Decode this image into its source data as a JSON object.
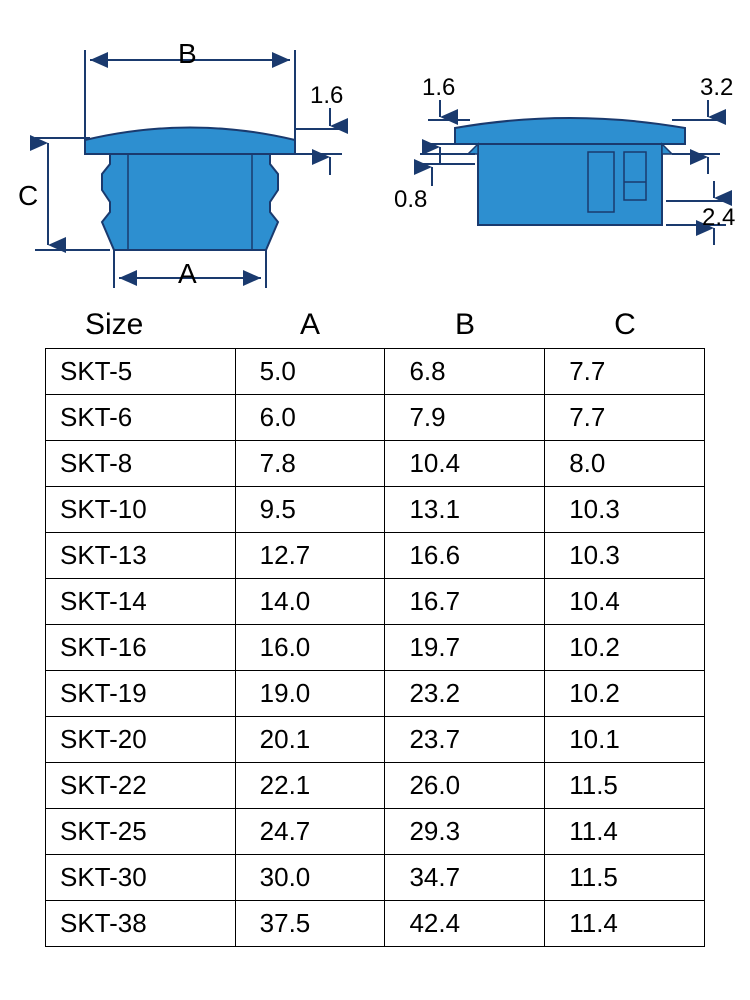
{
  "diagram": {
    "left_shape": {
      "fill_color": "#2d8fd0",
      "stroke_color": "#1a3a6e",
      "arrow_color": "#1a3a6e",
      "text_color": "#000000",
      "labels": {
        "B": "B",
        "A": "A",
        "C": "C",
        "top_thickness": "1.6"
      }
    },
    "right_shape": {
      "fill_color": "#2d8fd0",
      "stroke_color": "#1a3a6e",
      "arrow_color": "#1a3a6e",
      "text_color": "#000000",
      "labels": {
        "tl": "1.6",
        "tr": "3.2",
        "bl": "0.8",
        "br": "2.4"
      }
    }
  },
  "table": {
    "headers": {
      "size": "Size",
      "a": "A",
      "b": "B",
      "c": "C"
    },
    "header_fontsize": 30,
    "cell_fontsize": 26,
    "border_color": "#000000",
    "rows": [
      {
        "size": "SKT-5",
        "a": "5.0",
        "b": "6.8",
        "c": "7.7"
      },
      {
        "size": "SKT-6",
        "a": "6.0",
        "b": "7.9",
        "c": "7.7"
      },
      {
        "size": "SKT-8",
        "a": "7.8",
        "b": "10.4",
        "c": "8.0"
      },
      {
        "size": "SKT-10",
        "a": "9.5",
        "b": "13.1",
        "c": "10.3"
      },
      {
        "size": "SKT-13",
        "a": "12.7",
        "b": "16.6",
        "c": "10.3"
      },
      {
        "size": "SKT-14",
        "a": "14.0",
        "b": "16.7",
        "c": "10.4"
      },
      {
        "size": "SKT-16",
        "a": "16.0",
        "b": "19.7",
        "c": "10.2"
      },
      {
        "size": "SKT-19",
        "a": "19.0",
        "b": "23.2",
        "c": "10.2"
      },
      {
        "size": "SKT-20",
        "a": "20.1",
        "b": "23.7",
        "c": "10.1"
      },
      {
        "size": "SKT-22",
        "a": "22.1",
        "b": "26.0",
        "c": "11.5"
      },
      {
        "size": "SKT-25",
        "a": "24.7",
        "b": "29.3",
        "c": "11.4"
      },
      {
        "size": "SKT-30",
        "a": "30.0",
        "b": "34.7",
        "c": "11.5"
      },
      {
        "size": "SKT-38",
        "a": "37.5",
        "b": "42.4",
        "c": "11.4"
      }
    ]
  }
}
